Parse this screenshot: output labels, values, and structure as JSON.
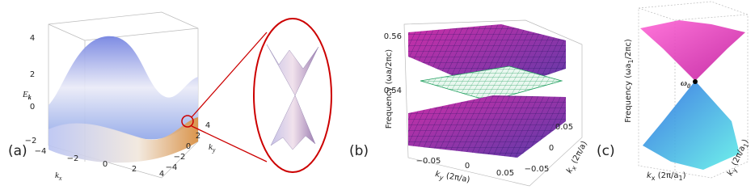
{
  "panels": [
    {
      "label": "(a)",
      "z_axis": {
        "title": [
          "E",
          "k"
        ],
        "ticks": [
          "4",
          "2",
          "0",
          "−2"
        ]
      },
      "x_axis": {
        "title": [
          "k",
          "x"
        ],
        "ticks": [
          "−4",
          "−2",
          "0",
          "2",
          "4"
        ]
      },
      "y_axis": {
        "title": [
          "k",
          "y"
        ],
        "ticks": [
          "4",
          "2",
          "0",
          "−2",
          "−4"
        ]
      }
    },
    {
      "label": "(b)",
      "y_axis": {
        "title": [
          "Frequency (ωa/2πc)"
        ],
        "ticks": [
          "0.56",
          "0.54"
        ]
      },
      "x_axis": {
        "title": [
          "k",
          "y",
          " (2π/a)"
        ],
        "ticks": [
          "−0.05",
          "0",
          "0.05"
        ]
      },
      "depth_axis": {
        "title": [
          "k",
          "x",
          " (2π/a)"
        ],
        "ticks": [
          "0.05",
          "0",
          "−0.05"
        ]
      }
    },
    {
      "label": "(c)",
      "y_axis": {
        "title": [
          "Frequency (ωa",
          "1",
          "/2πc)"
        ]
      },
      "point": [
        "ω",
        "0"
      ],
      "x_axis": {
        "title": [
          "k",
          "x",
          " (2π/a",
          "1",
          ")"
        ]
      },
      "depth_axis": {
        "title": [
          "k",
          "y",
          " (2π/a",
          "1",
          ")"
        ]
      }
    }
  ]
}
